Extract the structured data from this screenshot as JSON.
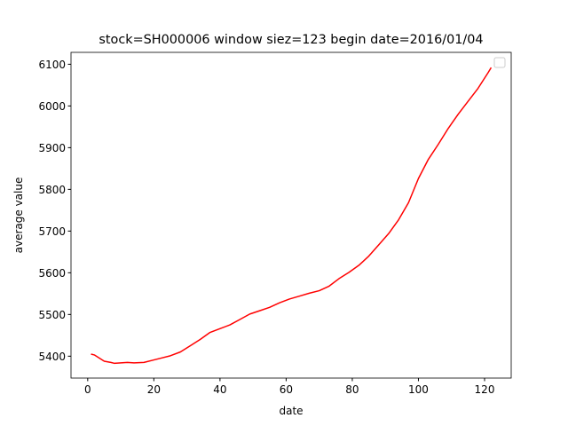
{
  "chart_data": {
    "type": "line",
    "title": "stock=SH000006 window siez=123 begin date=2016/01/04",
    "x_label": "date",
    "y_label": "average value",
    "x": [
      1,
      2,
      4,
      5,
      7,
      8,
      10,
      12,
      14,
      17,
      20,
      22,
      25,
      28,
      31,
      34,
      37,
      40,
      43,
      46,
      49,
      52,
      55,
      58,
      61,
      64,
      67,
      70,
      73,
      76,
      79,
      82,
      85,
      88,
      91,
      94,
      97,
      100,
      103,
      106,
      109,
      112,
      115,
      118,
      121,
      122
    ],
    "series": [
      {
        "color": "#ff0000",
        "values": [
          5405,
          5403,
          5393,
          5388,
          5385,
          5383,
          5384,
          5385,
          5384,
          5385,
          5391,
          5395,
          5401,
          5410,
          5425,
          5440,
          5457,
          5466,
          5475,
          5488,
          5501,
          5509,
          5517,
          5528,
          5537,
          5544,
          5551,
          5557,
          5568,
          5586,
          5601,
          5618,
          5640,
          5667,
          5694,
          5727,
          5768,
          5826,
          5872,
          5908,
          5946,
          5980,
          6011,
          6042,
          6079,
          6092
        ]
      }
    ],
    "xlim": [
      -5.05,
      128.05
    ],
    "xticks": [
      0,
      20,
      40,
      60,
      80,
      100,
      120
    ],
    "ylim": [
      5347.5,
      6128.5
    ],
    "yticks": [
      5400,
      5500,
      5600,
      5700,
      5800,
      5900,
      6000,
      6100
    ],
    "grid": false
  }
}
